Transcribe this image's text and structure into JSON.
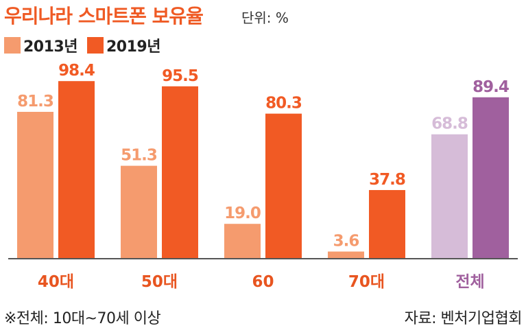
{
  "header": {
    "title": "우리나라 스마트폰 보유율",
    "unit": "단위: %"
  },
  "legend": [
    {
      "label": "2013년",
      "color": "#f59b6e"
    },
    {
      "label": "2019년",
      "color": "#f15a24"
    }
  ],
  "footer": {
    "note": "※전체: 10대~70세 이상",
    "source": "자료: 벤처기업협회"
  },
  "chart_data": {
    "type": "bar",
    "title": "우리나라 스마트폰 보유율",
    "categories": [
      "40대",
      "50대",
      "60",
      "70대",
      "전체"
    ],
    "series": [
      {
        "name": "2013년",
        "values": [
          81.3,
          51.3,
          19.0,
          3.6,
          68.8
        ]
      },
      {
        "name": "2019년",
        "values": [
          98.4,
          95.5,
          80.3,
          37.8,
          89.4
        ]
      }
    ],
    "value_labels": [
      [
        "81.3",
        "51.3",
        "19.0",
        "3.6",
        "68.8"
      ],
      [
        "98.4",
        "95.5",
        "80.3",
        "37.8",
        "89.4"
      ]
    ],
    "ylim": [
      0,
      100
    ],
    "grid": false,
    "legend_position": "top-left",
    "colors": {
      "s2013": "#f59b6e",
      "s2019": "#f15a24",
      "total2013": "#d6bcd8",
      "total2019": "#a0609e",
      "category_label": "#e85520",
      "total_label": "#a0609e"
    }
  }
}
